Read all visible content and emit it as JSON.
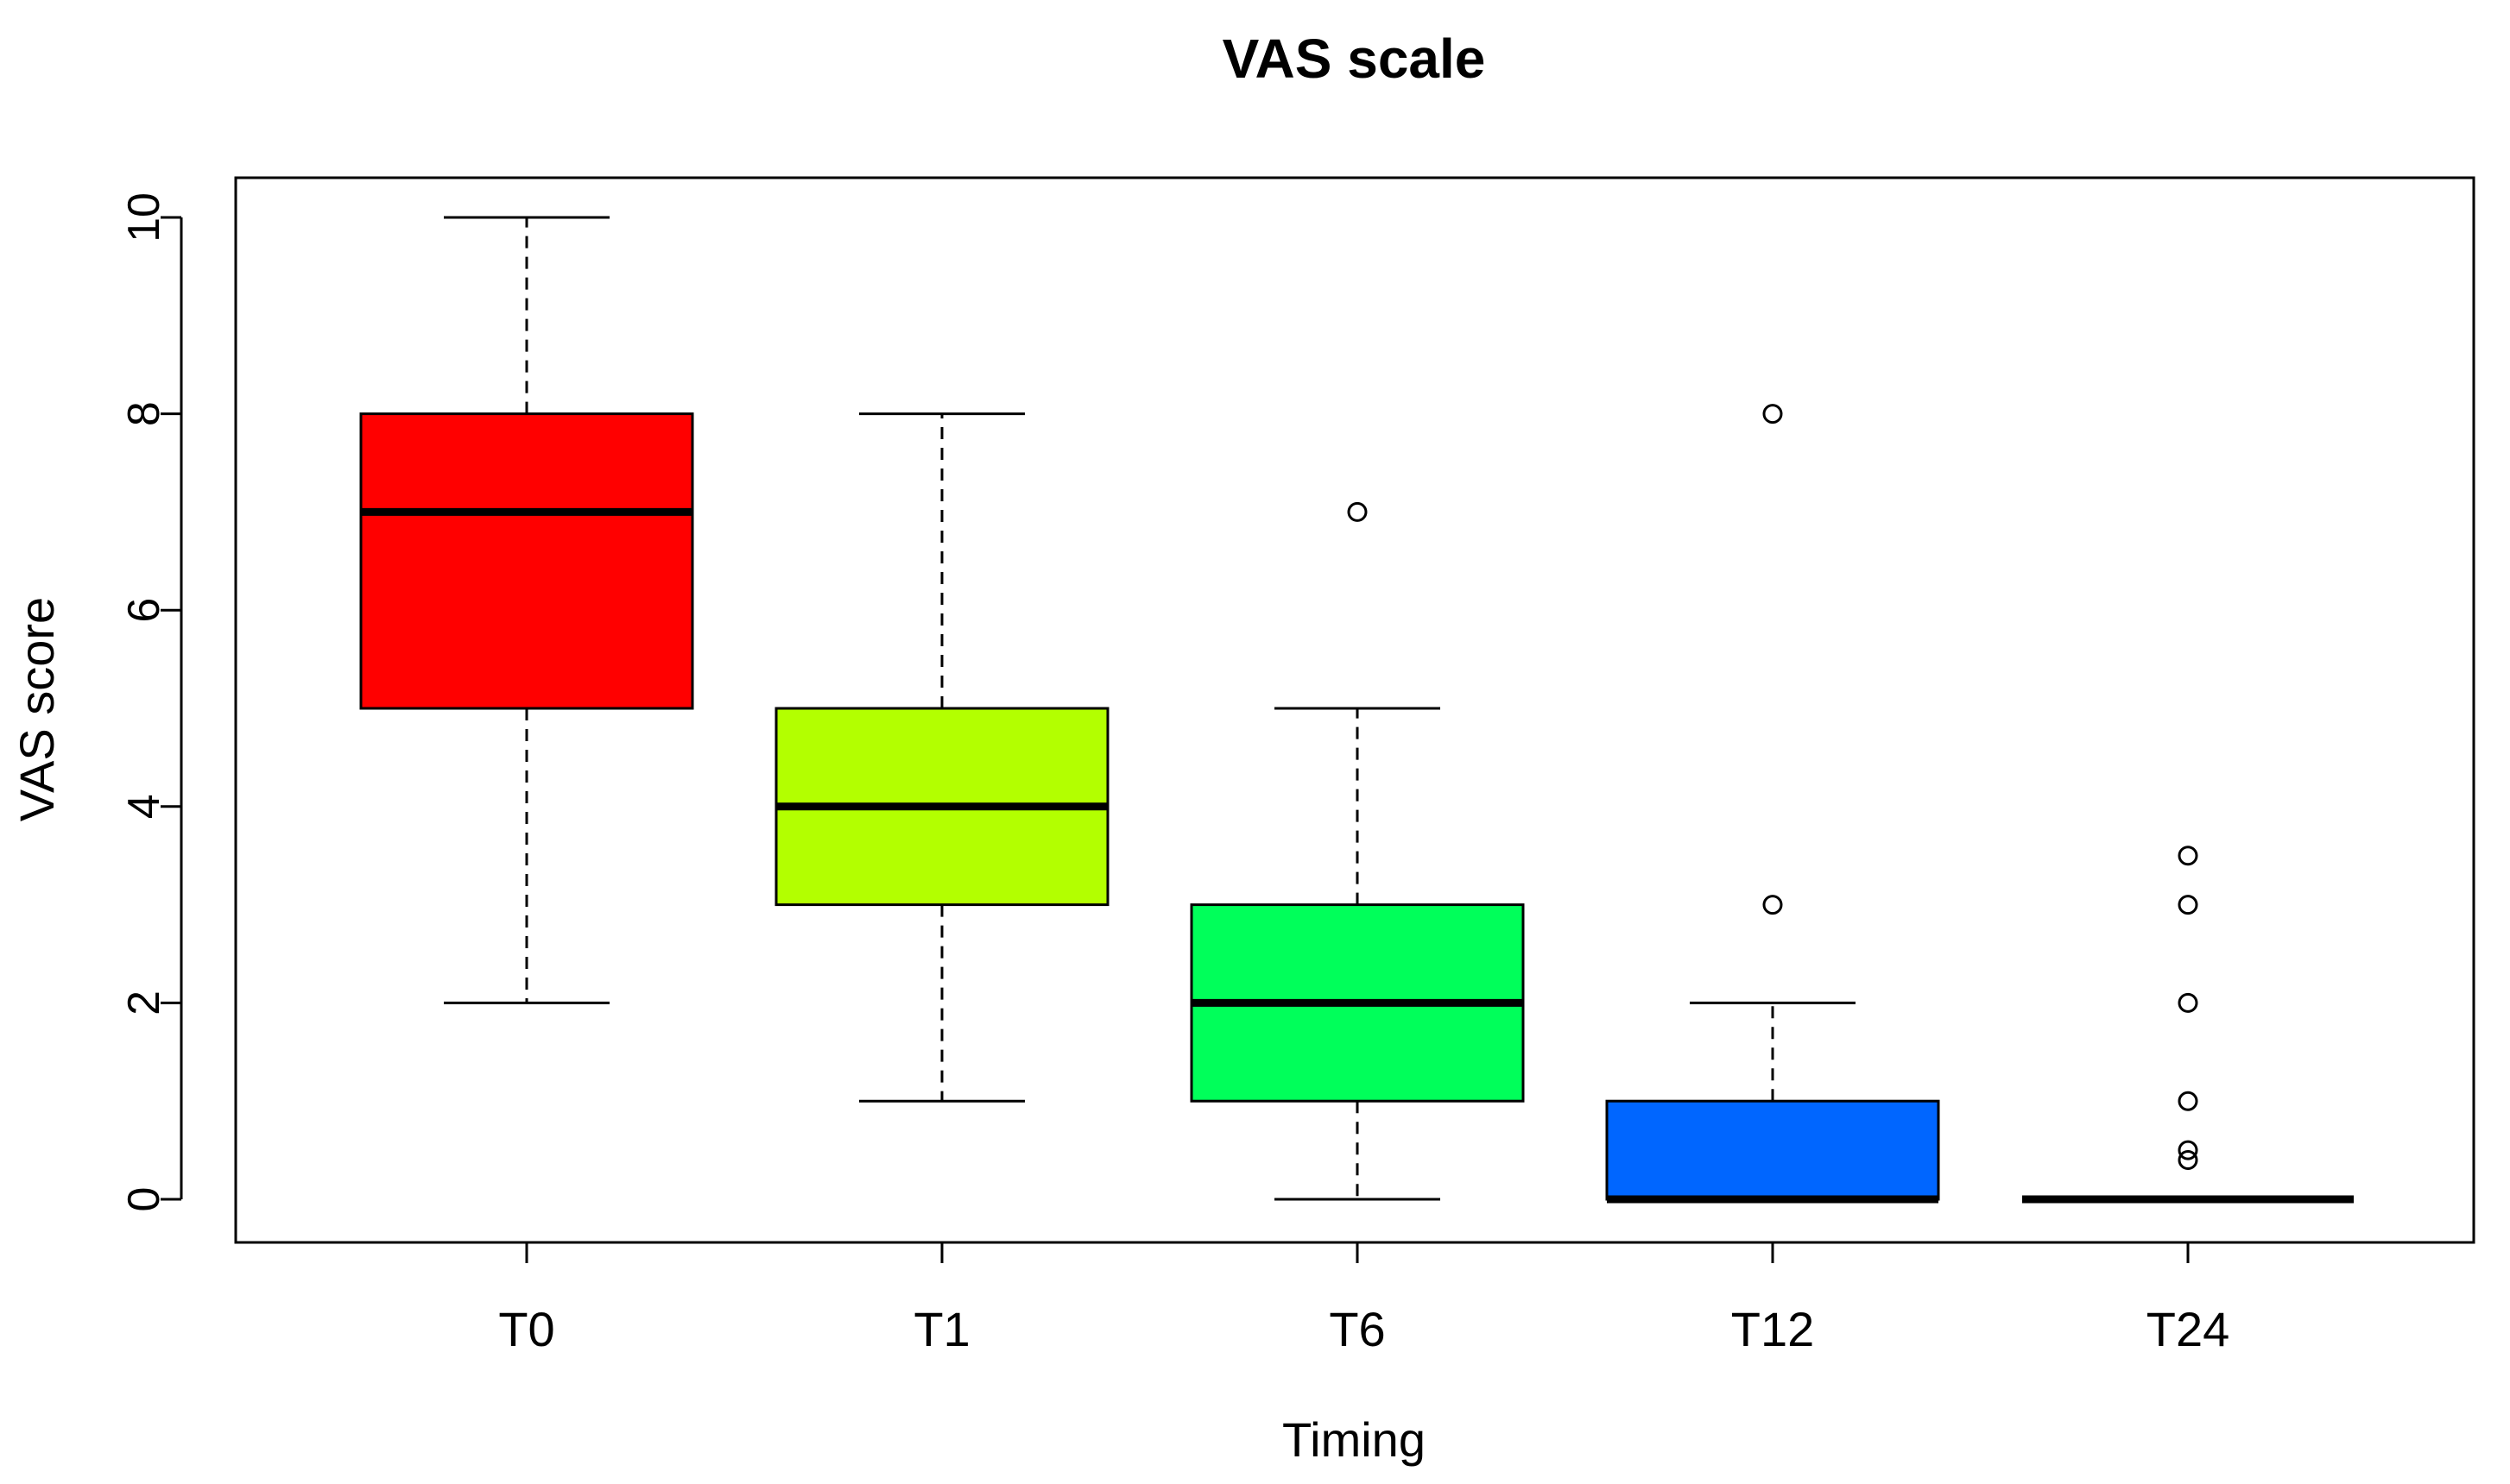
{
  "chart_data": {
    "type": "boxplot",
    "title": "VAS scale",
    "xlabel": "Timing",
    "ylabel": "VAS score",
    "ylim": [
      0,
      10
    ],
    "yticks": [
      0,
      2,
      4,
      6,
      8,
      10
    ],
    "ytick_labels": [
      "0",
      "2",
      "4",
      "6",
      "8",
      "10"
    ],
    "grid": false,
    "categories": [
      "T0",
      "T1",
      "T6",
      "T12",
      "T24"
    ],
    "colors": [
      "#ff0000",
      "#b3ff00",
      "#00ff5a",
      "#0066ff",
      "#000000"
    ],
    "boxes": [
      {
        "category": "T0",
        "whisker_low": 2,
        "q1": 5,
        "median": 7,
        "q3": 8,
        "whisker_high": 10,
        "outliers": []
      },
      {
        "category": "T1",
        "whisker_low": 1,
        "q1": 3,
        "median": 4,
        "q3": 5,
        "whisker_high": 8,
        "outliers": []
      },
      {
        "category": "T6",
        "whisker_low": 0,
        "q1": 1,
        "median": 2,
        "q3": 3,
        "whisker_high": 5,
        "outliers": [
          7
        ]
      },
      {
        "category": "T12",
        "whisker_low": 0,
        "q1": 0,
        "median": 0,
        "q3": 1,
        "whisker_high": 2,
        "outliers": [
          3,
          8
        ]
      },
      {
        "category": "T24",
        "whisker_low": 0,
        "q1": 0,
        "median": 0,
        "q3": 0,
        "whisker_high": 0,
        "outliers": [
          0.4,
          0.5,
          1,
          2,
          3,
          3.5
        ]
      }
    ]
  }
}
